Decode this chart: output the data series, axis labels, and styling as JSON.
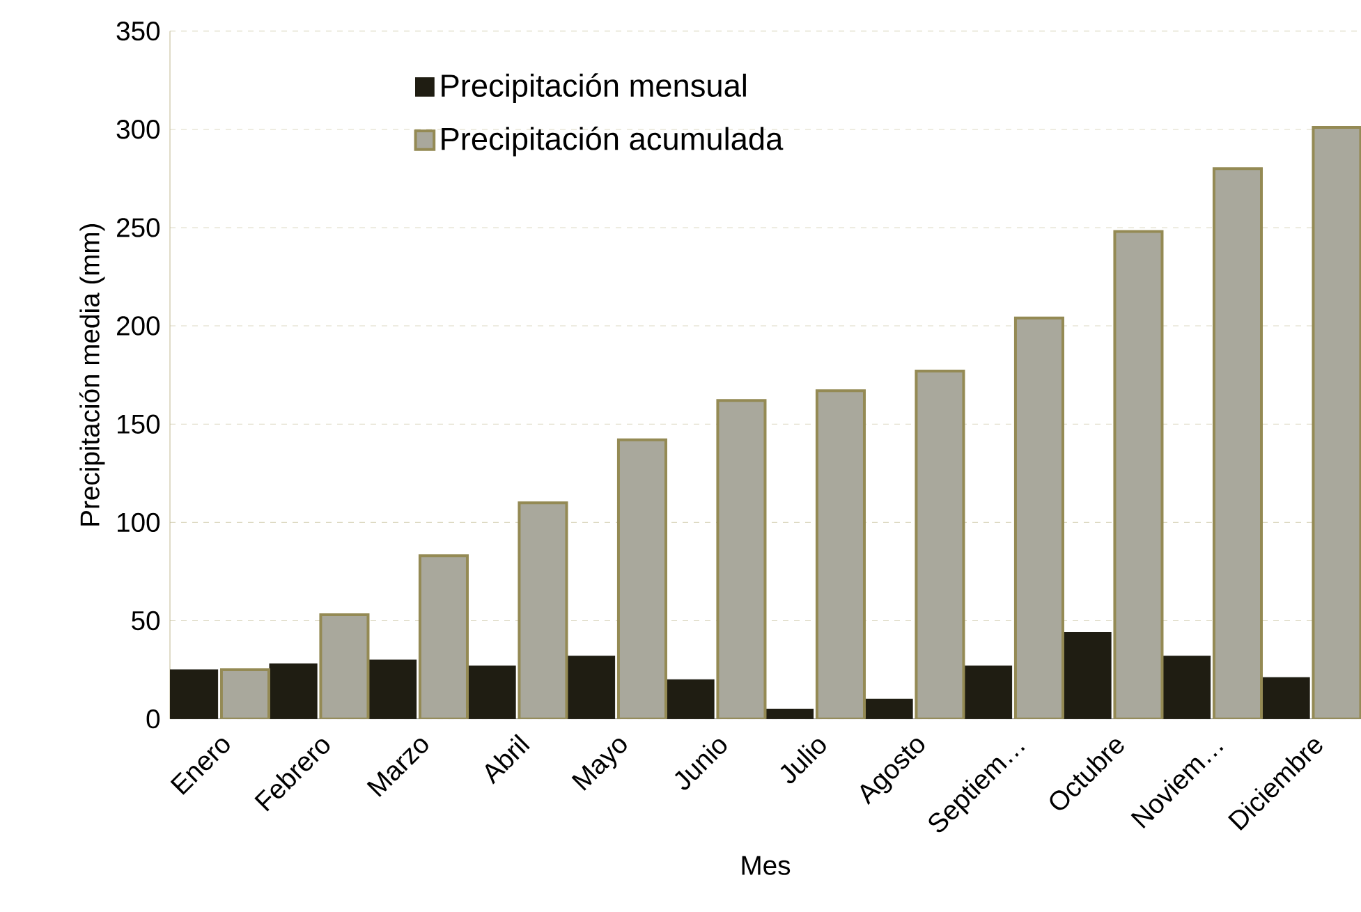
{
  "chart_data": {
    "type": "bar",
    "xlabel": "Mes",
    "ylabel": "Precipitación media (mm)",
    "categories": [
      "Enero",
      "Febrero",
      "Marzo",
      "Abril",
      "Mayo",
      "Junio",
      "Julio",
      "Agosto",
      "Septiem…",
      "Octubre",
      "Noviem…",
      "Diciembre"
    ],
    "series": [
      {
        "name": "Precipitación mensual",
        "color": "#1f1d12",
        "values": [
          25,
          28,
          30,
          27,
          32,
          20,
          5,
          10,
          27,
          44,
          32,
          21
        ]
      },
      {
        "name": "Precipitación acumulada",
        "color": "#a9a89c",
        "values": [
          25,
          53,
          83,
          110,
          142,
          162,
          167,
          177,
          204,
          248,
          280,
          301
        ]
      }
    ],
    "ylim": [
      0,
      350
    ],
    "yticks": [
      0,
      50,
      100,
      150,
      200,
      250,
      300,
      350
    ],
    "grid": "y",
    "legend": "top left"
  }
}
